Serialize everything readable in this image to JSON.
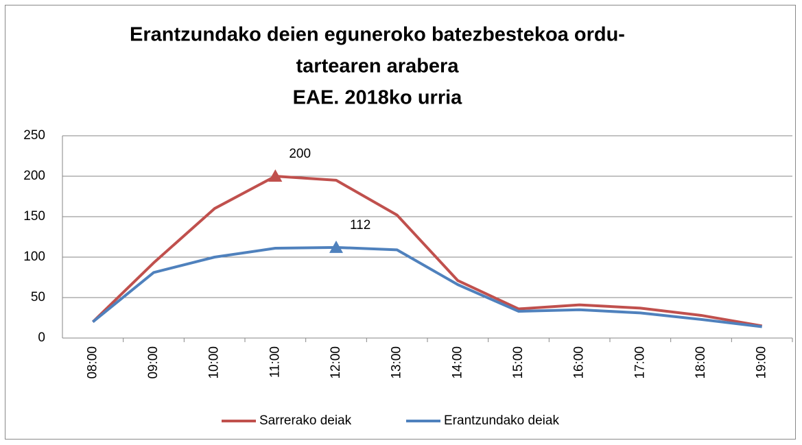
{
  "chart_data": {
    "type": "line",
    "title": [
      "Erantzundako deien eguneroko batezbestekoa ordu-",
      "tartearen arabera"
    ],
    "subtitle": "EAE. 2018ko urria",
    "categories": [
      "08:00",
      "09:00",
      "10:00",
      "11:00",
      "12:00",
      "13:00",
      "14:00",
      "15:00",
      "16:00",
      "17:00",
      "18:00",
      "19:00"
    ],
    "series": [
      {
        "name": "Sarrerako deiak",
        "color": "#c0504d",
        "values": [
          20,
          93,
          160,
          200,
          195,
          152,
          71,
          36,
          41,
          37,
          28,
          15
        ],
        "value_labels": [
          null,
          null,
          null,
          "200",
          null,
          null,
          null,
          null,
          null,
          null,
          null,
          null
        ]
      },
      {
        "name": "Erantzundako deiak",
        "color": "#4f81bd",
        "values": [
          20,
          81,
          100,
          111,
          112,
          109,
          66,
          33,
          35,
          31,
          23,
          14
        ],
        "value_labels": [
          null,
          null,
          null,
          null,
          "112",
          null,
          null,
          null,
          null,
          null,
          null,
          null
        ]
      }
    ],
    "ylim": [
      0,
      250
    ],
    "yticks": [
      0,
      50,
      100,
      150,
      200,
      250
    ],
    "grid": true,
    "legend": "bottom"
  }
}
